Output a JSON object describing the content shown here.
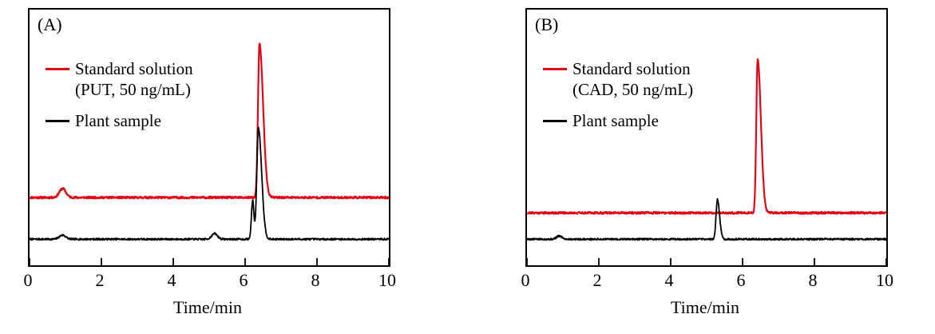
{
  "chart_data": [
    {
      "type": "line",
      "panel_label": "(A)",
      "xlabel": "Time/min",
      "xlim": [
        0,
        10
      ],
      "x_ticks": [
        0,
        2,
        4,
        6,
        8,
        10
      ],
      "grid": false,
      "legend_position": "upper-left-inside",
      "legend": [
        {
          "label": "Standard solution",
          "sublabel": "(PUT, 50 ng/mL)",
          "color": "#e30613"
        },
        {
          "label": "Plant sample",
          "sublabel": "",
          "color": "#000000"
        }
      ],
      "series": [
        {
          "name": "standard-solution-put",
          "color": "#e30613",
          "line_width": 2.2,
          "baseline": 0.265,
          "noise": 0.004,
          "seed": 11,
          "peaks": [
            {
              "center": 0.92,
              "height": 0.035,
              "sigma": 0.09
            },
            {
              "center": 6.4,
              "height": 0.6,
              "sigma": 0.042,
              "sigma_r": 0.1
            }
          ]
        },
        {
          "name": "plant-sample",
          "color": "#000000",
          "line_width": 1.8,
          "baseline": 0.102,
          "noise": 0.0035,
          "seed": 7,
          "peaks": [
            {
              "center": 0.92,
              "height": 0.016,
              "sigma": 0.09
            },
            {
              "center": 5.15,
              "height": 0.022,
              "sigma": 0.08
            },
            {
              "center": 6.21,
              "height": 0.15,
              "sigma": 0.035
            },
            {
              "center": 6.37,
              "height": 0.435,
              "sigma": 0.045,
              "sigma_r": 0.09
            }
          ]
        }
      ]
    },
    {
      "type": "line",
      "panel_label": "(B)",
      "xlabel": "Time/min",
      "xlim": [
        0,
        10
      ],
      "x_ticks": [
        0,
        2,
        4,
        6,
        8,
        10
      ],
      "grid": false,
      "legend_position": "upper-left-inside",
      "legend": [
        {
          "label": "Standard solution",
          "sublabel": "(CAD, 50 ng/mL)",
          "color": "#e30613"
        },
        {
          "label": "Plant sample",
          "sublabel": "",
          "color": "#000000"
        }
      ],
      "series": [
        {
          "name": "standard-solution-cad",
          "color": "#e30613",
          "line_width": 2.2,
          "baseline": 0.205,
          "noise": 0.004,
          "seed": 21,
          "peaks": [
            {
              "center": 6.42,
              "height": 0.6,
              "sigma": 0.038,
              "sigma_r": 0.09
            }
          ]
        },
        {
          "name": "plant-sample",
          "color": "#000000",
          "line_width": 1.8,
          "baseline": 0.102,
          "noise": 0.0035,
          "seed": 5,
          "peaks": [
            {
              "center": 0.9,
              "height": 0.012,
              "sigma": 0.08
            },
            {
              "center": 5.3,
              "height": 0.155,
              "sigma": 0.038,
              "sigma_r": 0.06
            }
          ]
        }
      ]
    }
  ]
}
